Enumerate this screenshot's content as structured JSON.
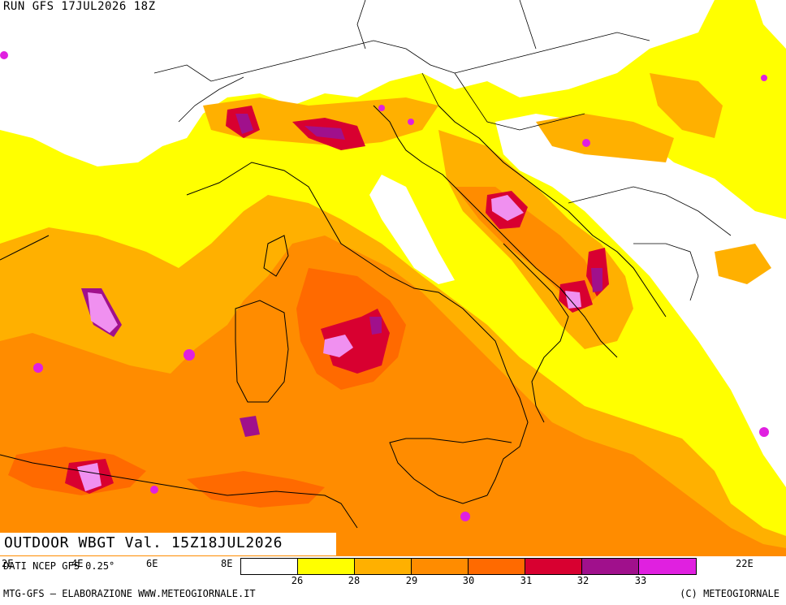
{
  "header": {
    "run_title": "RUN GFS 17JUL2026 18Z"
  },
  "map": {
    "valid_title": "OUTDOOR WBGT Val. 15Z18JUL2026",
    "data_source": "DATI NCEP GFS 0.25°",
    "longitude_labels": [
      "2E",
      "4E",
      "6E",
      "8E",
      "22E"
    ],
    "colors": {
      "sea_base": "#ffff00",
      "land_low": "#ffffff",
      "c26": "#ffff00",
      "c28": "#ffb000",
      "c29": "#ff8c00",
      "c30": "#ff6a00",
      "c31": "#d80030",
      "c32": "#a0108c",
      "c33": "#e020e0",
      "c34": "#f090f0"
    }
  },
  "legend": {
    "colors": [
      "#ffffff",
      "#ffff00",
      "#ffb000",
      "#ff8c00",
      "#ff6a00",
      "#d80030",
      "#a0108c",
      "#e020e0",
      "#f090f0"
    ],
    "labels": [
      "26",
      "28",
      "29",
      "30",
      "31",
      "32",
      "33"
    ]
  },
  "footer": {
    "left": "MTG-GFS — ELABORAZIONE WWW.METEOGIORNALE.IT",
    "right": "(C) METEOGIORNALE"
  }
}
